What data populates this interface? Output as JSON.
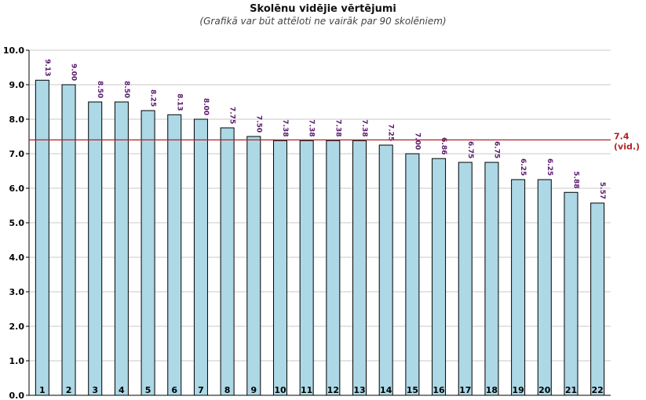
{
  "chart_data": {
    "type": "bar",
    "title": "Skolēnu vidējie vērtējumi",
    "subtitle": "(Grafikā var būt attēloti ne vairāk par 90 skolēniem)",
    "categories": [
      "1",
      "2",
      "3",
      "4",
      "5",
      "6",
      "7",
      "8",
      "9",
      "10",
      "11",
      "12",
      "13",
      "14",
      "15",
      "16",
      "17",
      "18",
      "19",
      "20",
      "21",
      "22"
    ],
    "values": [
      9.13,
      9.0,
      8.5,
      8.5,
      8.25,
      8.13,
      8.0,
      7.75,
      7.5,
      7.38,
      7.38,
      7.38,
      7.38,
      7.25,
      7.0,
      6.86,
      6.75,
      6.75,
      6.25,
      6.25,
      5.88,
      5.57
    ],
    "ylim": [
      0,
      10
    ],
    "yticks": [
      "0.0",
      "1.0",
      "2.0",
      "3.0",
      "4.0",
      "5.0",
      "6.0",
      "7.0",
      "8.0",
      "9.0",
      "10.0"
    ],
    "grid": true,
    "reference_line": {
      "value": 7.4,
      "label": "7.4",
      "sublabel": "(vid.)"
    },
    "colors": {
      "bar_fill": "#add8e6",
      "bar_stroke": "#000000",
      "value_label": "#5a1a6e",
      "reference_line": "#b22222",
      "grid": "#c8c8c8"
    }
  }
}
